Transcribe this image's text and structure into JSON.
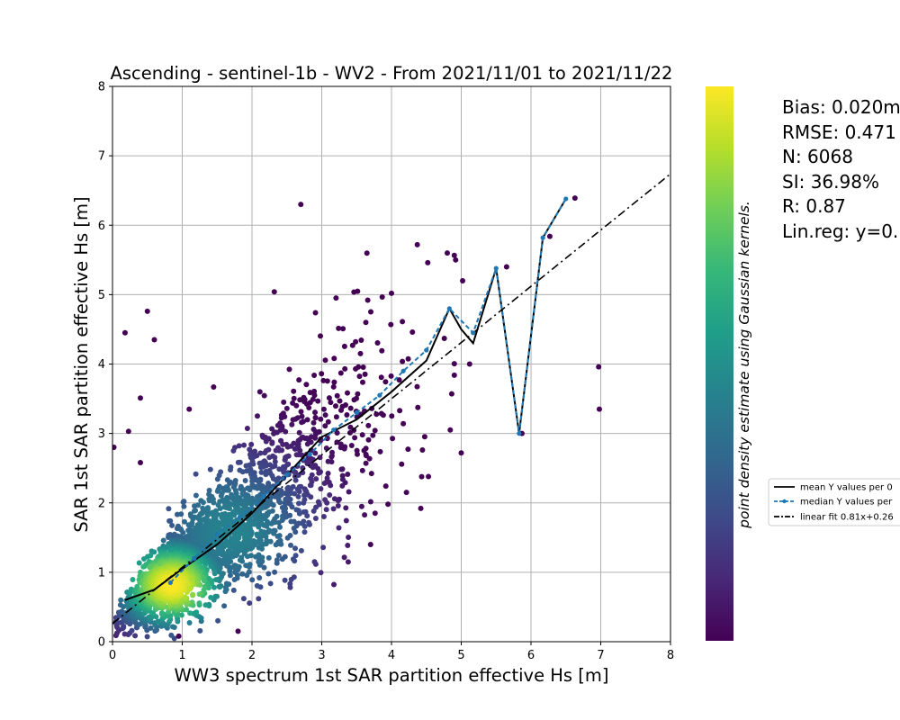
{
  "chart_data": {
    "type": "scatter",
    "title": "Ascending - sentinel-1b - WV2 - From 2021/11/01 to 2021/11/22",
    "xlabel": "WW3 spectrum 1st SAR partition effective Hs [m]",
    "ylabel": "SAR 1st SAR partition effective Hs [m]",
    "xlim": [
      0,
      8
    ],
    "ylim": [
      0,
      8
    ],
    "xticks": [
      "0",
      "1",
      "2",
      "3",
      "4",
      "5",
      "6",
      "7",
      "8"
    ],
    "yticks": [
      "0",
      "1",
      "2",
      "3",
      "4",
      "5",
      "6",
      "7",
      "8"
    ],
    "grid": true,
    "colormap": "viridis",
    "colorbar_label": "point density estimate using Gaussian kernels.",
    "mean_line": {
      "x": [
        0.18,
        0.6,
        1.0,
        1.5,
        2.0,
        2.5,
        3.0,
        3.5,
        4.0,
        4.5,
        4.83,
        5.0,
        5.17,
        5.5,
        5.83,
        6.17,
        6.5
      ],
      "y": [
        0.6,
        0.75,
        1.05,
        1.4,
        1.85,
        2.4,
        2.95,
        3.2,
        3.6,
        4.05,
        4.8,
        4.5,
        4.3,
        5.38,
        3.0,
        5.82,
        6.38
      ]
    },
    "median_line": {
      "x": [
        0.83,
        1.17,
        1.5,
        1.83,
        2.17,
        2.5,
        2.83,
        3.17,
        3.5,
        3.83,
        4.17,
        4.5,
        4.83,
        5.17,
        5.5,
        5.83,
        6.17,
        6.5
      ],
      "y": [
        0.85,
        1.2,
        1.55,
        1.8,
        2.1,
        2.4,
        2.7,
        3.05,
        3.3,
        3.55,
        3.9,
        4.2,
        4.8,
        4.45,
        5.38,
        3.0,
        5.82,
        6.38
      ]
    },
    "linear_fit": {
      "slope": 0.81,
      "intercept": 0.26
    },
    "outliers": [
      {
        "x": 2.7,
        "y": 6.3
      },
      {
        "x": 6.63,
        "y": 6.39
      },
      {
        "x": 6.97,
        "y": 3.96
      },
      {
        "x": 6.98,
        "y": 3.35
      },
      {
        "x": 5.87,
        "y": 3.0
      },
      {
        "x": 5.12,
        "y": 4.0
      },
      {
        "x": 5.0,
        "y": 2.72
      },
      {
        "x": 4.37,
        "y": 5.72
      },
      {
        "x": 4.52,
        "y": 5.46
      },
      {
        "x": 4.8,
        "y": 5.6
      },
      {
        "x": 4.92,
        "y": 5.5
      },
      {
        "x": 2.32,
        "y": 5.04
      },
      {
        "x": 0.18,
        "y": 4.45
      },
      {
        "x": 0.5,
        "y": 4.76
      },
      {
        "x": 0.6,
        "y": 4.35
      },
      {
        "x": 0.4,
        "y": 3.51
      },
      {
        "x": 1.45,
        "y": 3.67
      },
      {
        "x": 1.1,
        "y": 3.35
      },
      {
        "x": 0.02,
        "y": 2.8
      },
      {
        "x": 0.4,
        "y": 2.58
      },
      {
        "x": 0.23,
        "y": 3.03
      },
      {
        "x": 5.65,
        "y": 5.4
      },
      {
        "x": 6.27,
        "y": 5.84
      },
      {
        "x": 4.42,
        "y": 1.92
      },
      {
        "x": 4.53,
        "y": 2.38
      },
      {
        "x": 3.7,
        "y": 1.4
      },
      {
        "x": 4.0,
        "y": 5.02
      },
      {
        "x": 1.8,
        "y": 0.15
      },
      {
        "x": 0.95,
        "y": 0.08
      },
      {
        "x": 3.95,
        "y": 1.98
      },
      {
        "x": 4.3,
        "y": 4.46
      },
      {
        "x": 5.02,
        "y": 5.2
      }
    ],
    "legend": {
      "placement": "center-right",
      "entries": [
        "mean Y values per 0",
        "median Y values per",
        "linear fit 0.81x+0.26"
      ]
    },
    "stats": [
      "Bias: 0.020m",
      "RMSE: 0.471",
      "N: 6068",
      "SI: 36.98%",
      "R: 0.87",
      "Lin.reg: y=0."
    ]
  },
  "colors": {
    "mean_line": "#000000",
    "median_line": "#1f77b4",
    "grid": "#b0b0b0",
    "viridis": [
      "#440154",
      "#482878",
      "#3e4a89",
      "#31688e",
      "#26828e",
      "#1f9e89",
      "#35b779",
      "#6ece58",
      "#b5de2b",
      "#fde725"
    ]
  }
}
